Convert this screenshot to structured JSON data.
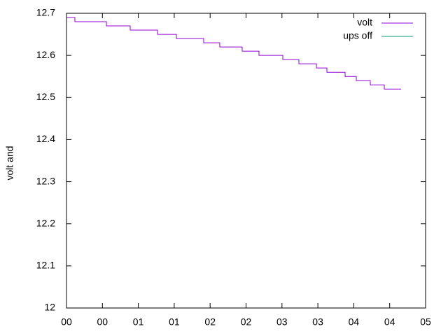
{
  "chart_data": {
    "type": "line",
    "ylabel": "volt and",
    "xlim": [
      0,
      5
    ],
    "xticks": [
      {
        "value": 0,
        "label": "00"
      },
      {
        "value": 0.5,
        "label": "00"
      },
      {
        "value": 1,
        "label": "01"
      },
      {
        "value": 1.5,
        "label": "01"
      },
      {
        "value": 2,
        "label": "02"
      },
      {
        "value": 2.5,
        "label": "02"
      },
      {
        "value": 3,
        "label": "03"
      },
      {
        "value": 3.5,
        "label": "03"
      },
      {
        "value": 4,
        "label": "04"
      },
      {
        "value": 4.5,
        "label": "04"
      },
      {
        "value": 5,
        "label": "05"
      }
    ],
    "ylim": [
      12,
      12.7
    ],
    "yticks": [
      12,
      12.1,
      12.2,
      12.3,
      12.4,
      12.5,
      12.6,
      12.7
    ],
    "legend": "upper right",
    "series": [
      {
        "name": "volt",
        "color": "#9400d3",
        "x": [
          0,
          0.117,
          0.117,
          0.556,
          0.556,
          0.887,
          0.887,
          1.267,
          1.267,
          1.53,
          1.53,
          1.91,
          1.91,
          2.134,
          2.134,
          2.446,
          2.446,
          2.68,
          2.68,
          3.012,
          3.012,
          3.236,
          3.236,
          3.48,
          3.48,
          3.626,
          3.626,
          3.879,
          3.879,
          4.035,
          4.035,
          4.23,
          4.23,
          4.425,
          4.425,
          4.659
        ],
        "values": [
          12.69,
          12.69,
          12.68,
          12.68,
          12.67,
          12.67,
          12.66,
          12.66,
          12.65,
          12.65,
          12.64,
          12.64,
          12.63,
          12.63,
          12.62,
          12.62,
          12.61,
          12.61,
          12.6,
          12.6,
          12.59,
          12.59,
          12.58,
          12.58,
          12.57,
          12.57,
          12.56,
          12.56,
          12.55,
          12.55,
          12.54,
          12.54,
          12.53,
          12.53,
          12.52,
          12.52
        ]
      },
      {
        "name": "ups off",
        "color": "#009e73",
        "x": [],
        "values": []
      }
    ]
  }
}
